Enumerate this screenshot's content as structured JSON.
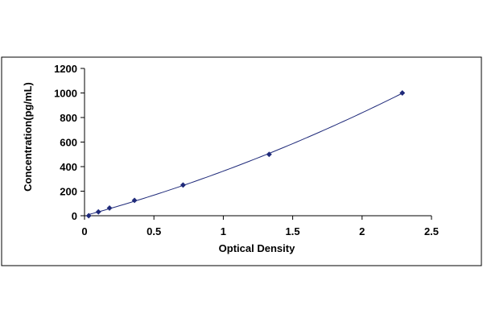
{
  "chart_data": {
    "type": "scatter",
    "title": "",
    "xlabel": "Optical Density",
    "ylabel": "Concentration(pg/mL)",
    "xlim": [
      0,
      2.5
    ],
    "ylim": [
      0,
      1200
    ],
    "x_ticks": [
      0,
      0.5,
      1,
      1.5,
      2,
      2.5
    ],
    "x_tick_labels": [
      "0",
      "0.5",
      "1",
      "1.5",
      "2",
      "2.5"
    ],
    "y_ticks": [
      0,
      200,
      400,
      600,
      800,
      1000,
      1200
    ],
    "y_tick_labels": [
      "0",
      "200",
      "400",
      "600",
      "800",
      "1000",
      "1200"
    ],
    "grid": false,
    "legend": "none",
    "series": [
      {
        "points": [
          {
            "x": 0.03,
            "y": 0
          },
          {
            "x": 0.1,
            "y": 31.25
          },
          {
            "x": 0.18,
            "y": 62.5
          },
          {
            "x": 0.36,
            "y": 125
          },
          {
            "x": 0.71,
            "y": 250
          },
          {
            "x": 1.33,
            "y": 500
          },
          {
            "x": 2.29,
            "y": 1000
          }
        ],
        "marker": "diamond",
        "marker_color": "#1f2a7a",
        "trendline": "polynomial",
        "line_color": "#1f2a7a"
      }
    ]
  }
}
